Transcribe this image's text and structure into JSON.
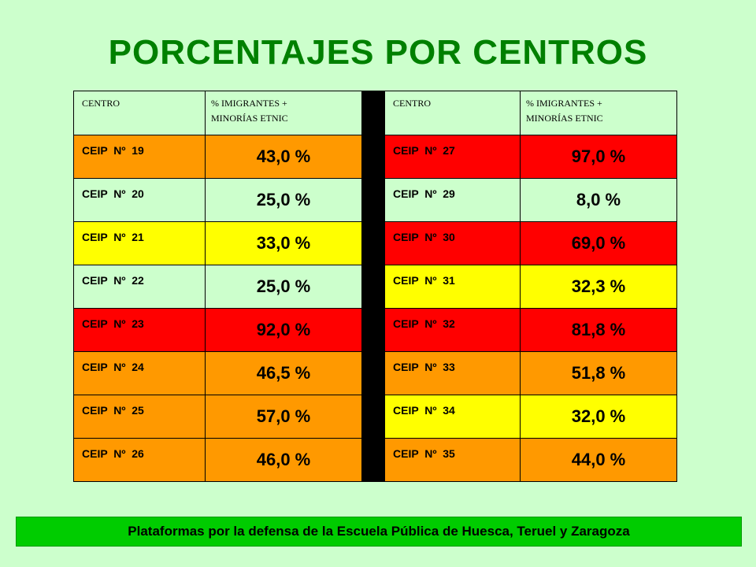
{
  "title": "PORCENTAJES POR CENTROS",
  "table": {
    "headers": {
      "center": "CENTRO",
      "percent_line1": "% IMIGRANTES +",
      "percent_line2": "MINORÍAS ETNIC"
    },
    "colors": {
      "red": "#FF0000",
      "orange": "#FF9900",
      "yellow": "#FFFF00",
      "light": "#CCFFCC",
      "separator": "#000000"
    },
    "left": [
      {
        "name": "CEIP  Nº  19",
        "value": "43,0 %",
        "color": "orange"
      },
      {
        "name": "CEIP  Nº  20",
        "value": "25,0 %",
        "color": "light"
      },
      {
        "name": "CEIP  Nº  21",
        "value": "33,0 %",
        "color": "yellow"
      },
      {
        "name": "CEIP  Nº  22",
        "value": "25,0 %",
        "color": "light"
      },
      {
        "name": "CEIP  Nº  23",
        "value": "92,0 %",
        "color": "red"
      },
      {
        "name": "CEIP  Nº  24",
        "value": "46,5 %",
        "color": "orange"
      },
      {
        "name": "CEIP  Nº  25",
        "value": "57,0 %",
        "color": "orange"
      },
      {
        "name": "CEIP  Nº  26",
        "value": "46,0 %",
        "color": "orange"
      }
    ],
    "right": [
      {
        "name": "CEIP  Nº  27",
        "value": "97,0 %",
        "color": "red"
      },
      {
        "name": "CEIP  Nº  29",
        "value": "8,0 %",
        "color": "light"
      },
      {
        "name": "CEIP  Nº  30",
        "value": "69,0 %",
        "color": "red"
      },
      {
        "name": "CEIP  Nº  31",
        "value": "32,3 %",
        "color": "yellow"
      },
      {
        "name": "CEIP  Nº  32",
        "value": "81,8 %",
        "color": "red"
      },
      {
        "name": "CEIP  Nº  33",
        "value": "51,8 %",
        "color": "orange"
      },
      {
        "name": "CEIP  Nº  34",
        "value": "32,0 %",
        "color": "yellow"
      },
      {
        "name": "CEIP  Nº  35",
        "value": "44,0 %",
        "color": "orange"
      }
    ]
  },
  "footer": "Plataformas por la defensa de la Escuela Pública de Huesca, Teruel y Zaragoza"
}
